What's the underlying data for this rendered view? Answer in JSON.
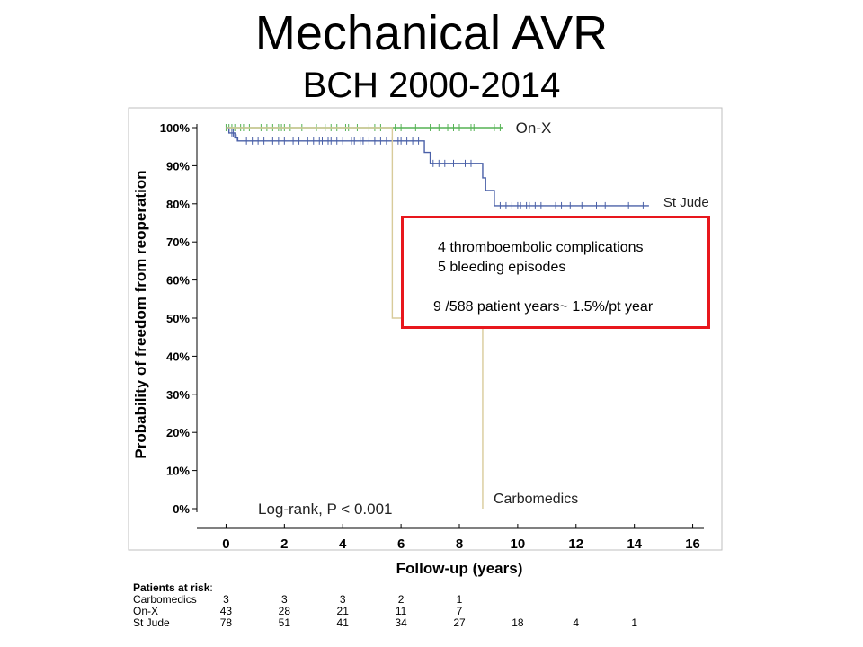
{
  "title": "Mechanical AVR",
  "subtitle": "BCH 2000-2014",
  "chart_data": {
    "type": "line",
    "subtype": "kaplan-meier step",
    "xlabel": "Follow-up (years)",
    "ylabel": "Probability of freedom from reoperation",
    "xlim": [
      -1,
      17
    ],
    "ylim": [
      0,
      100
    ],
    "x_ticks": [
      "0",
      "2",
      "4",
      "6",
      "8",
      "10",
      "12",
      "14",
      "16"
    ],
    "x_tick_values": [
      0,
      2,
      4,
      6,
      8,
      10,
      12,
      14,
      16
    ],
    "y_ticks": [
      "0%",
      "10%",
      "20%",
      "30%",
      "40%",
      "50%",
      "60%",
      "70%",
      "80%",
      "90%",
      "100%"
    ],
    "y_tick_values": [
      0,
      10,
      20,
      30,
      40,
      50,
      60,
      70,
      80,
      90,
      100
    ],
    "grid": false,
    "annotation": "Log-rank, P < 0.001",
    "series": [
      {
        "name": "On-X",
        "color": "#55b254",
        "steps": [
          [
            0,
            100
          ],
          [
            9.5,
            100
          ]
        ],
        "censored": [
          0.0,
          0.1,
          0.2,
          0.3,
          0.5,
          0.6,
          0.8,
          1.2,
          1.4,
          1.6,
          1.8,
          1.9,
          2.0,
          2.2,
          2.6,
          3.1,
          3.4,
          3.6,
          3.7,
          3.8,
          4.1,
          4.2,
          4.5,
          4.9,
          5.1,
          5.3,
          5.8,
          6.0,
          6.5,
          7.0,
          7.3,
          7.6,
          7.8,
          8.0,
          8.4,
          8.5,
          9.2,
          9.4
        ]
      },
      {
        "name": "St Jude",
        "color": "#4a60a8",
        "steps": [
          [
            0,
            100
          ],
          [
            0.1,
            98.6
          ],
          [
            0.3,
            97.3
          ],
          [
            0.4,
            96.5
          ],
          [
            6.8,
            93.5
          ],
          [
            7.0,
            90.6
          ],
          [
            8.8,
            86.8
          ],
          [
            8.9,
            83.5
          ],
          [
            9.2,
            79.5
          ],
          [
            14.5,
            79.5
          ]
        ],
        "censored": [
          0.2,
          0.25,
          0.35,
          0.7,
          0.9,
          1.1,
          1.3,
          1.6,
          1.8,
          2.0,
          2.3,
          2.5,
          2.8,
          3.0,
          3.2,
          3.3,
          3.5,
          3.6,
          3.8,
          4.0,
          4.3,
          4.4,
          4.6,
          4.7,
          4.9,
          5.1,
          5.3,
          5.5,
          5.7,
          5.9,
          6.0,
          6.2,
          6.4,
          6.6,
          7.1,
          7.3,
          7.5,
          7.8,
          8.2,
          8.4,
          9.4,
          9.6,
          9.8,
          10.0,
          10.1,
          10.3,
          10.4,
          10.6,
          10.8,
          11.3,
          11.5,
          11.8,
          12.2,
          12.7,
          13.0,
          13.8,
          14.3
        ]
      },
      {
        "name": "Carbomedics",
        "color": "#d8cb9a",
        "steps": [
          [
            0,
            100
          ],
          [
            5.7,
            100
          ],
          [
            5.7,
            50
          ],
          [
            8.8,
            50
          ],
          [
            8.8,
            0
          ]
        ],
        "censored": []
      }
    ]
  },
  "note": {
    "line1": "4 thromboembolic complications",
    "line2": "5  bleeding episodes",
    "line3": "9 /588 patient years~ 1.5%/pt year",
    "border_color": "#e8171d"
  },
  "risk_table": {
    "heading": "Patients at risk",
    "heading_suffix": ":",
    "rows": [
      {
        "label": "Carbomedics",
        "values": [
          "3",
          "3",
          "3",
          "2",
          "1",
          "",
          "",
          ""
        ]
      },
      {
        "label": "On-X",
        "values": [
          "43",
          "28",
          "21",
          "11",
          "7",
          "",
          "",
          ""
        ]
      },
      {
        "label": "St Jude",
        "values": [
          "78",
          "51",
          "41",
          "34",
          "27",
          "18",
          "4",
          "1"
        ]
      }
    ]
  }
}
